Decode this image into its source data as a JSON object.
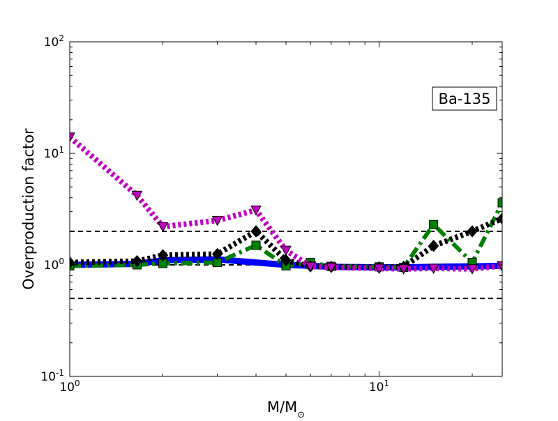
{
  "chart_data": {
    "type": "line",
    "xscale": "log",
    "yscale": "log",
    "xlim": [
      1,
      25
    ],
    "ylim": [
      0.1,
      100
    ],
    "xlabel": "M/M⊙",
    "ylabel": "Overproduction factor",
    "annotation": "Ba-135",
    "x_tick_labels": [
      {
        "value": 1,
        "base": "10",
        "exp": "0"
      },
      {
        "value": 10,
        "base": "10",
        "exp": "1"
      }
    ],
    "y_tick_labels": [
      {
        "value": 0.1,
        "base": "10",
        "exp": "-1"
      },
      {
        "value": 1,
        "base": "10",
        "exp": "0"
      },
      {
        "value": 10,
        "base": "10",
        "exp": "1"
      },
      {
        "value": 100,
        "base": "10",
        "exp": "2"
      }
    ],
    "reference_lines": [
      0.5,
      1,
      2
    ],
    "series": [
      {
        "color": "#0000ff",
        "style": "solid",
        "marker": "none",
        "x": [
          1,
          1.65,
          2,
          3,
          4,
          5,
          6,
          7,
          10,
          12,
          15,
          20,
          25
        ],
        "y": [
          1.0,
          1.02,
          1.1,
          1.12,
          1.05,
          1.0,
          0.98,
          0.96,
          0.95,
          0.95,
          0.96,
          0.97,
          0.98
        ]
      },
      {
        "color": "#008000",
        "style": "dashdot",
        "marker": "square",
        "x": [
          1,
          1.65,
          2,
          3,
          4,
          5,
          6,
          7,
          10,
          12,
          15,
          20,
          25
        ],
        "y": [
          0.98,
          1.0,
          1.03,
          1.05,
          1.5,
          0.98,
          1.05,
          0.97,
          0.96,
          0.95,
          2.3,
          1.05,
          3.6
        ]
      },
      {
        "color": "#000000",
        "style": "dotted",
        "marker": "diamond",
        "x": [
          1,
          1.65,
          2,
          3,
          4,
          5,
          6,
          7,
          10,
          12,
          15,
          20,
          25
        ],
        "y": [
          1.05,
          1.08,
          1.22,
          1.25,
          2.0,
          1.1,
          0.97,
          0.96,
          0.95,
          0.96,
          1.48,
          2.0,
          2.6
        ]
      },
      {
        "color": "#c000c0",
        "style": "dotted",
        "marker": "triangle-down",
        "x": [
          1,
          1.65,
          2,
          3,
          4,
          5,
          6,
          7,
          10,
          12,
          15,
          20,
          25
        ],
        "y": [
          14,
          4.2,
          2.2,
          2.5,
          3.1,
          1.35,
          0.97,
          0.95,
          0.93,
          0.92,
          0.93,
          0.92,
          0.98
        ]
      }
    ]
  }
}
